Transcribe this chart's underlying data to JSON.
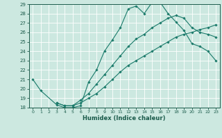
{
  "title": "",
  "xlabel": "Humidex (Indice chaleur)",
  "xlim": [
    -0.5,
    23.5
  ],
  "ylim": [
    18,
    29
  ],
  "xticks": [
    0,
    1,
    2,
    3,
    4,
    5,
    6,
    7,
    8,
    9,
    10,
    11,
    12,
    13,
    14,
    15,
    16,
    17,
    18,
    19,
    20,
    21,
    22,
    23
  ],
  "yticks": [
    18,
    19,
    20,
    21,
    22,
    23,
    24,
    25,
    26,
    27,
    28,
    29
  ],
  "background_color": "#cce8e0",
  "grid_color": "#ffffff",
  "line_color": "#1a7a6a",
  "lines": [
    {
      "x": [
        0,
        1,
        3,
        4,
        5,
        6,
        7,
        8,
        9,
        10,
        11,
        12,
        13,
        14,
        15,
        16,
        17,
        18,
        19,
        20,
        21,
        22,
        23
      ],
      "y": [
        21.0,
        19.8,
        18.3,
        18.0,
        18.0,
        18.2,
        20.7,
        22.0,
        24.0,
        25.2,
        26.5,
        28.5,
        28.8,
        28.0,
        29.2,
        29.2,
        28.0,
        27.1,
        26.2,
        24.8,
        24.5,
        24.0,
        23.0
      ]
    },
    {
      "x": [
        3,
        4,
        5,
        6,
        7,
        8,
        9,
        10,
        11,
        12,
        13,
        14,
        15,
        16,
        17,
        18,
        19,
        20,
        21,
        22,
        23
      ],
      "y": [
        18.5,
        18.2,
        18.2,
        18.5,
        19.0,
        19.5,
        20.2,
        21.0,
        21.8,
        22.5,
        23.0,
        23.5,
        24.0,
        24.5,
        25.0,
        25.5,
        25.8,
        26.0,
        26.3,
        26.5,
        26.8
      ]
    },
    {
      "x": [
        3,
        4,
        5,
        6,
        7,
        8,
        9,
        10,
        11,
        12,
        13,
        14,
        15,
        16,
        17,
        18,
        19,
        20,
        21,
        22,
        23
      ],
      "y": [
        18.5,
        18.2,
        18.2,
        18.8,
        19.5,
        20.5,
        21.5,
        22.5,
        23.5,
        24.5,
        25.3,
        25.8,
        26.5,
        27.0,
        27.5,
        27.8,
        27.5,
        26.5,
        26.0,
        25.8,
        25.5
      ]
    }
  ]
}
